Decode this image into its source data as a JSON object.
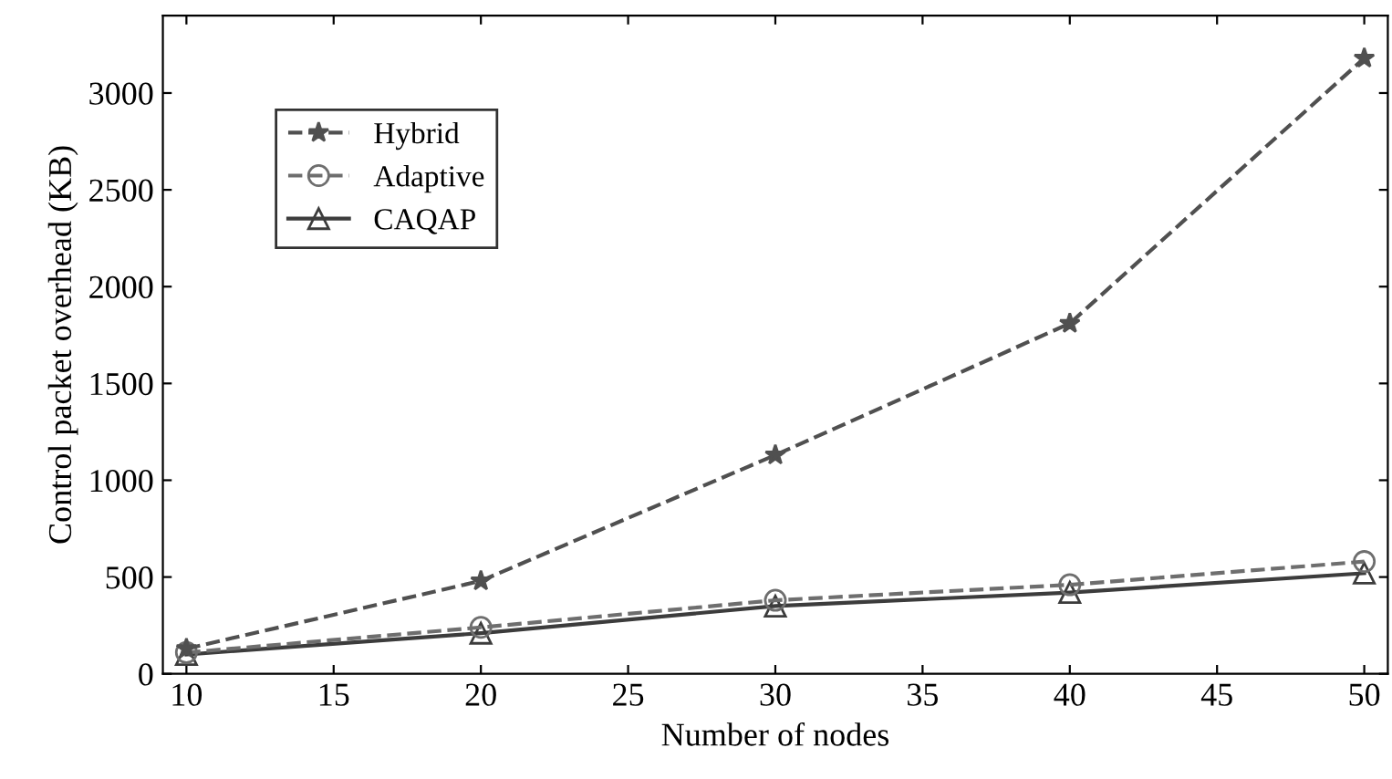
{
  "chart_data": {
    "type": "line",
    "xlabel": "Number of nodes",
    "ylabel": "Control packet overhead (KB)",
    "x": [
      10,
      20,
      30,
      40,
      50
    ],
    "series": [
      {
        "name": "Hybrid",
        "color": "#505050",
        "values": [
          130,
          480,
          1130,
          1810,
          3180
        ],
        "marker": "star",
        "line_style": "dashed"
      },
      {
        "name": "Adaptive",
        "color": "#6e6e6e",
        "values": [
          110,
          240,
          380,
          460,
          580
        ],
        "marker": "circle",
        "line_style": "dashed"
      },
      {
        "name": "CAQAP",
        "color": "#3c3c3c",
        "values": [
          100,
          210,
          350,
          420,
          520
        ],
        "marker": "triangle",
        "line_style": "solid"
      }
    ],
    "xlim": [
      9.2,
      50.8
    ],
    "ylim": [
      0,
      3400
    ],
    "xticks": [
      10,
      15,
      20,
      25,
      30,
      35,
      40,
      45,
      50
    ],
    "yticks": [
      0,
      500,
      1000,
      1500,
      2000,
      2500,
      3000
    ],
    "grid": false,
    "legend": "top left"
  }
}
